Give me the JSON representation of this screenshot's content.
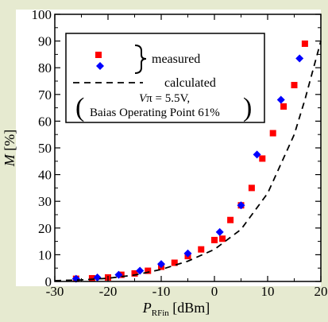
{
  "chart_data": {
    "type": "scatter",
    "xlabel_main": "P",
    "xlabel_sub": "RFin",
    "xlabel_unit": " [dBm]",
    "ylabel_main": "M",
    "ylabel_unit": " [%]",
    "xlim": [
      -30,
      20
    ],
    "ylim": [
      0,
      100
    ],
    "xticks": [
      -30,
      -20,
      -10,
      0,
      10,
      20
    ],
    "yticks": [
      0,
      10,
      20,
      30,
      40,
      50,
      60,
      70,
      80,
      90,
      100
    ],
    "grid": false,
    "legend_position": "top-left",
    "legend": {
      "brace_label": "measured",
      "line_label": "calculated",
      "note_line1_italic": "V",
      "note_line1_rest": "π = 5.5V,",
      "note_line2": "Baias Operating Point 61%"
    },
    "series": [
      {
        "marker": "square",
        "color": "#ff0000",
        "x": [
          -26,
          -23,
          -20,
          -17.5,
          -15,
          -12.5,
          -10,
          -7.5,
          -5,
          -2.5,
          0,
          1.5,
          3,
          5,
          7,
          9,
          11,
          13,
          15,
          17
        ],
        "y": [
          1,
          1.2,
          1.5,
          2.5,
          3,
          4,
          5.5,
          7,
          9.5,
          12,
          15.5,
          16,
          23,
          28.5,
          35,
          46,
          55.5,
          65.5,
          73.5,
          89
        ]
      },
      {
        "marker": "diamond",
        "color": "#0000ff",
        "x": [
          -26,
          -22,
          -18,
          -14,
          -10,
          -5,
          1,
          5,
          8,
          12.5,
          16
        ],
        "y": [
          1,
          1.5,
          2.5,
          4,
          6.5,
          10.5,
          18.5,
          28.5,
          47.5,
          68,
          83.5
        ]
      },
      {
        "type": "line",
        "style": "dashed",
        "color": "#000000",
        "x": [
          -30,
          -25,
          -20,
          -15,
          -10,
          -5,
          0,
          5,
          10,
          15,
          17,
          20
        ],
        "y": [
          0.3,
          0.6,
          1.2,
          2.4,
          4.5,
          7.6,
          12,
          19.5,
          33,
          55,
          68,
          90
        ]
      }
    ]
  }
}
